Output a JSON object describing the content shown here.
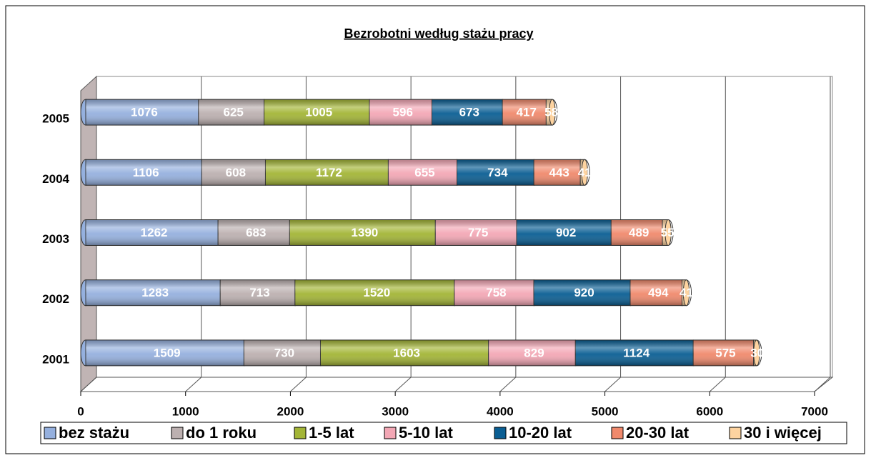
{
  "chart_data": {
    "type": "bar",
    "orientation": "horizontal",
    "stacked": true,
    "title": "Bezrobotni według stażu pracy",
    "categories": [
      "2001",
      "2002",
      "2003",
      "2004",
      "2005"
    ],
    "series": [
      {
        "name": "bez stażu",
        "color": "#95b0de",
        "values": [
          1509,
          1283,
          1262,
          1106,
          1076
        ]
      },
      {
        "name": "do 1 roku",
        "color": "#bcb0b0",
        "values": [
          730,
          713,
          683,
          608,
          625
        ]
      },
      {
        "name": "1-5 lat",
        "color": "#a3b536",
        "values": [
          1603,
          1520,
          1390,
          1172,
          1005
        ]
      },
      {
        "name": "5-10 lat",
        "color": "#f3a7b5",
        "values": [
          829,
          758,
          775,
          655,
          596
        ]
      },
      {
        "name": "10-20 lat",
        "color": "#0a5e93",
        "values": [
          1124,
          920,
          902,
          734,
          673
        ]
      },
      {
        "name": "20-30 lat",
        "color": "#f0896c",
        "values": [
          575,
          494,
          489,
          443,
          417
        ]
      },
      {
        "name": "30 i więcej",
        "color": "#fdd3a0",
        "values": [
          30,
          41,
          55,
          41,
          58
        ]
      }
    ],
    "xlim": [
      0,
      7000
    ],
    "xticks": [
      0,
      1000,
      2000,
      3000,
      4000,
      5000,
      6000,
      7000
    ],
    "grid": true,
    "legend": "bottom"
  }
}
